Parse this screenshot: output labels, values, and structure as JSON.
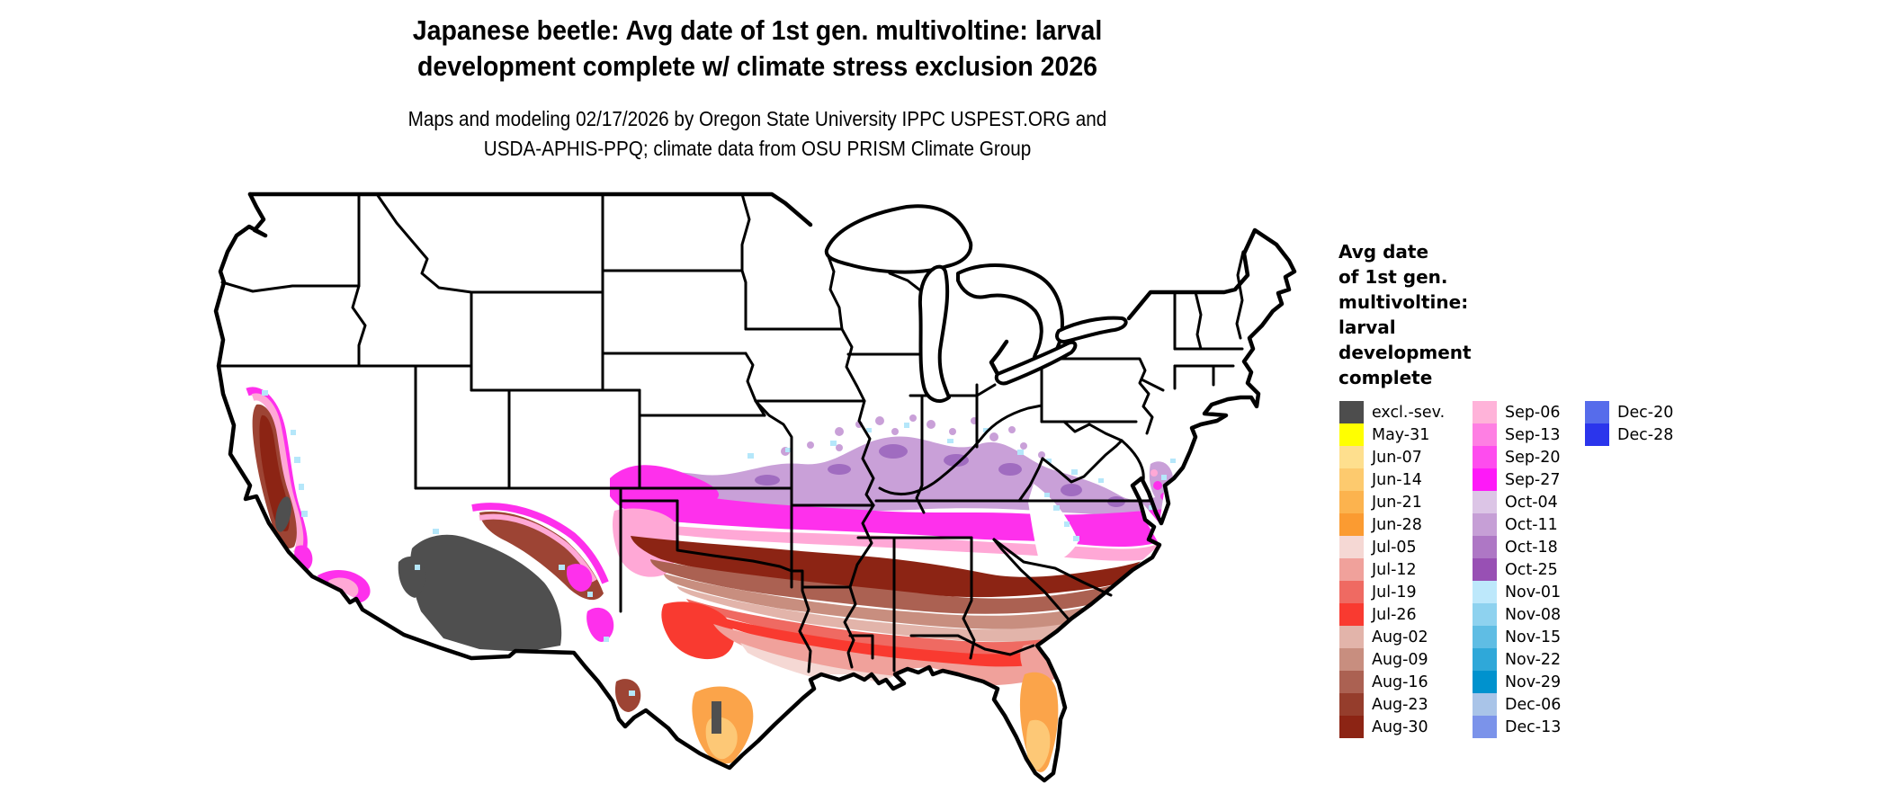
{
  "page": {
    "background": "#ffffff"
  },
  "header": {
    "title_line1": "Japanese beetle: Avg date of 1st gen. multivoltine: larval",
    "title_line2": "development complete w/ climate stress exclusion 2026",
    "subtitle_line1": "Maps and modeling 02/17/2026 by Oregon State University IPPC USPEST.ORG and",
    "subtitle_line2": "USDA-APHIS-PPQ; climate data from OSU PRISM Climate Group"
  },
  "map": {
    "region": "Conterminous United States",
    "land_color": "#ffffff",
    "state_border_color": "#000000",
    "no_data_color": "#ffffff"
  },
  "legend": {
    "title_lines": [
      "Avg date",
      "of 1st gen.",
      "multivoltine:",
      "larval",
      "development",
      "complete"
    ],
    "columns": [
      [
        {
          "label": "excl.-sev.",
          "color": "#4d4d4d"
        },
        {
          "label": "May-31",
          "color": "#ffff00"
        },
        {
          "label": "Jun-07",
          "color": "#fedf8e"
        },
        {
          "label": "Jun-14",
          "color": "#fdca6e"
        },
        {
          "label": "Jun-21",
          "color": "#fcb34e"
        },
        {
          "label": "Jun-28",
          "color": "#fb9b31"
        },
        {
          "label": "Jul-05",
          "color": "#f5d8d4"
        },
        {
          "label": "Jul-12",
          "color": "#f0a19b"
        },
        {
          "label": "Jul-19",
          "color": "#ef6a62"
        },
        {
          "label": "Jul-26",
          "color": "#f93a30"
        },
        {
          "label": "Aug-02",
          "color": "#e2b4aa"
        },
        {
          "label": "Aug-09",
          "color": "#c88e7f"
        },
        {
          "label": "Aug-16",
          "color": "#ab6152"
        },
        {
          "label": "Aug-23",
          "color": "#953d2c"
        },
        {
          "label": "Aug-30",
          "color": "#8c2414"
        }
      ],
      [
        {
          "label": "Sep-06",
          "color": "#ffb3d9"
        },
        {
          "label": "Sep-13",
          "color": "#fe7fe3"
        },
        {
          "label": "Sep-20",
          "color": "#fe4cee"
        },
        {
          "label": "Sep-27",
          "color": "#fe19f8"
        },
        {
          "label": "Oct-04",
          "color": "#dcc5e6"
        },
        {
          "label": "Oct-11",
          "color": "#c69fd6"
        },
        {
          "label": "Oct-18",
          "color": "#ae77c5"
        },
        {
          "label": "Oct-25",
          "color": "#9850b4"
        },
        {
          "label": "Nov-01",
          "color": "#bde8fb"
        },
        {
          "label": "Nov-08",
          "color": "#8ed2ef"
        },
        {
          "label": "Nov-15",
          "color": "#5fbde4"
        },
        {
          "label": "Nov-22",
          "color": "#2fa8d9"
        },
        {
          "label": "Nov-29",
          "color": "#0092ce"
        },
        {
          "label": "Dec-06",
          "color": "#a9c4e8"
        },
        {
          "label": "Dec-13",
          "color": "#7b93ea"
        }
      ],
      [
        {
          "label": "Dec-20",
          "color": "#566ceb"
        },
        {
          "label": "Dec-28",
          "color": "#2b35ec"
        }
      ]
    ]
  }
}
